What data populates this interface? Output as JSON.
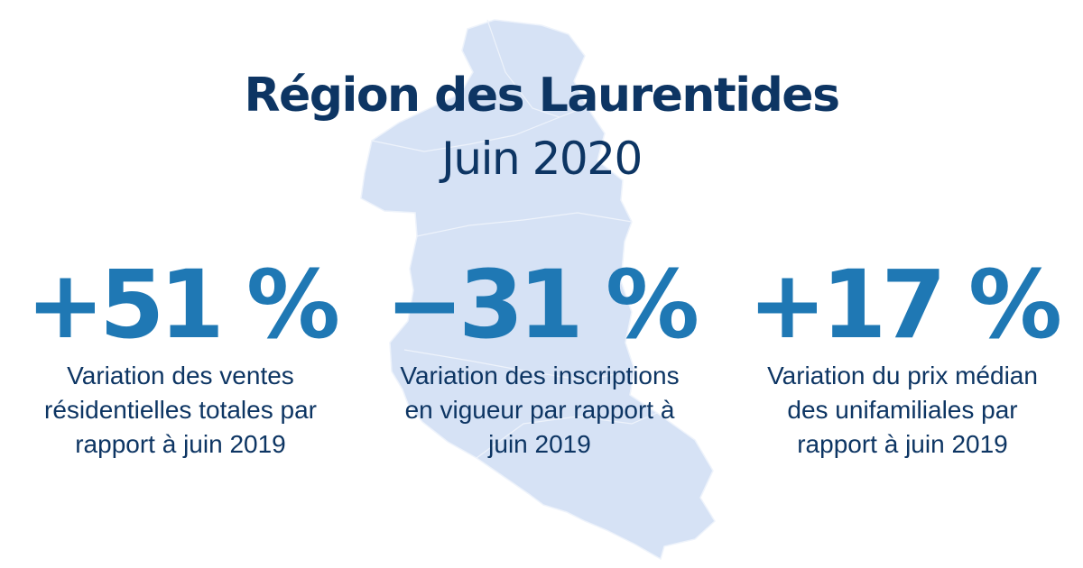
{
  "header": {
    "title": "Région des Laurentides",
    "subtitle": "Juin 2020"
  },
  "stats": [
    {
      "value": "+51 %",
      "label_lines": [
        "Variation des ventes",
        "résidentielles totales par",
        "rapport à juin 2019"
      ]
    },
    {
      "value": "−31 %",
      "label_lines": [
        "Variation des inscriptions",
        "en vigueur par rapport à",
        "juin 2019"
      ]
    },
    {
      "value": "+17 %",
      "label_lines": [
        "Variation du prix médian",
        "des unifamiliales par",
        "rapport à juin 2019"
      ]
    }
  ],
  "colors": {
    "title": "#0d3563",
    "value": "#1f78b4",
    "label": "#0d3563",
    "map_fill": "#d6e2f5",
    "map_edge": "#eef3fb"
  },
  "icons": {
    "background_map": "laurentides-region-map"
  }
}
